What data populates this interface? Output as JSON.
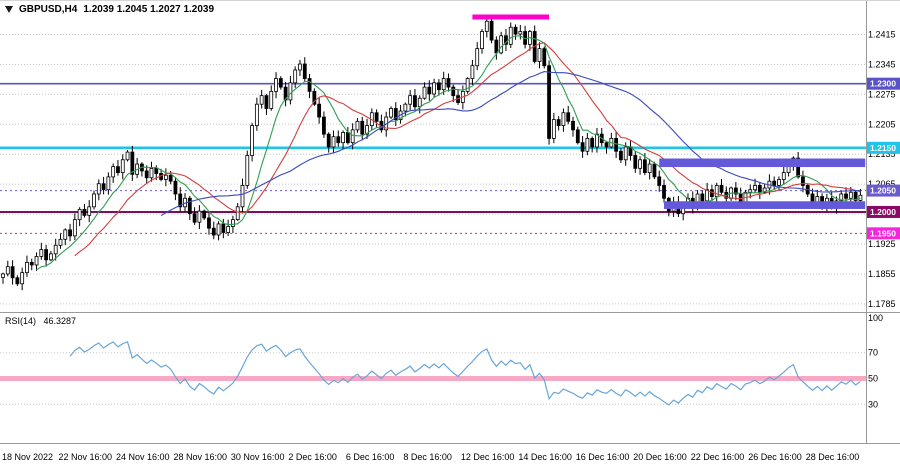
{
  "header": {
    "symbol_timeframe": "GBPUSD,H4",
    "open": "1.2039",
    "high": "1.2045",
    "low": "1.2027",
    "close": "1.2039",
    "ohlc": "1.2039 1.2045 1.2027 1.2039"
  },
  "indicator": {
    "label": "RSI(14)",
    "value": "46.3287"
  },
  "colors": {
    "background": "#ffffff",
    "grid": "#c6c6c6",
    "bull_candle": "#ffffff",
    "bear_candle": "#000000",
    "candle_outline": "#000000",
    "ma_fast": "#2f9e4f",
    "ma_medium": "#d23f3f",
    "ma_slow": "#3a49c0",
    "rsi_line": "#6aa5d8",
    "rsi_band": "#f7a8c4",
    "separator": "#9a9a9a",
    "axis_text": "#000000"
  },
  "chart_data": [
    {
      "type": "candlestick",
      "title": "GBPUSD,H4",
      "ylabel": "price",
      "y_range": [
        1.1773,
        1.247
      ],
      "x_label_step": 12,
      "x_labels": [
        "18 Nov 2022",
        "22 Nov 16:00",
        "24 Nov 16:00",
        "28 Nov 16:00",
        "30 Nov 16:00",
        "2 Dec 16:00",
        "6 Dec 16:00",
        "8 Dec 16:00",
        "12 Dec 16:00",
        "14 Dec 16:00",
        "16 Dec 16:00",
        "20 Dec 16:00",
        "22 Dec 16:00",
        "26 Dec 16:00",
        "28 Dec 16:00"
      ],
      "price_tick_labels": [
        "1.2415",
        "1.2345",
        "1.2275",
        "1.2205",
        "1.2135",
        "1.2065",
        "1.1995",
        "1.1925",
        "1.1855",
        "1.1785"
      ],
      "closes": [
        1.1855,
        1.1872,
        1.1846,
        1.1832,
        1.1858,
        1.1882,
        1.1876,
        1.1896,
        1.1912,
        1.1888,
        1.1902,
        1.1922,
        1.1936,
        1.1958,
        1.1944,
        1.1982,
        1.2006,
        1.1992,
        1.2012,
        1.2042,
        1.2066,
        1.2052,
        1.2082,
        1.2106,
        1.2092,
        1.2122,
        1.214,
        1.2088,
        1.2112,
        1.2096,
        1.208,
        1.2102,
        1.209,
        1.2076,
        1.2086,
        1.2072,
        1.2042,
        1.2012,
        1.2032,
        1.1996,
        1.1976,
        1.2002,
        1.1986,
        1.1962,
        1.1946,
        1.1972,
        1.1952,
        1.1966,
        1.1982,
        1.2012,
        1.2062,
        1.2132,
        1.2202,
        1.2252,
        1.2272,
        1.2242,
        1.2282,
        1.2312,
        1.2292,
        1.2262,
        1.2302,
        1.2332,
        1.2346,
        1.2312,
        1.2282,
        1.2252,
        1.2222,
        1.2182,
        1.2152,
        1.2176,
        1.2162,
        1.2186,
        1.2162,
        1.2192,
        1.2212,
        1.2182,
        1.2202,
        1.2232,
        1.2212,
        1.2192,
        1.2222,
        1.2242,
        1.2216,
        1.2236,
        1.2252,
        1.2272,
        1.2246,
        1.2266,
        1.2292,
        1.2276,
        1.2302,
        1.2286,
        1.2312,
        1.2292,
        1.2272,
        1.2256,
        1.2282,
        1.2312,
        1.2342,
        1.2382,
        1.2422,
        1.2446,
        1.2402,
        1.2372,
        1.2412,
        1.2392,
        1.2432,
        1.2416,
        1.2422,
        1.2392,
        1.2422,
        1.2352,
        1.2382,
        1.2342,
        1.2172,
        1.2216,
        1.2202,
        1.2232,
        1.2212,
        1.2192,
        1.2162,
        1.2142,
        1.2172,
        1.2152,
        1.2182,
        1.2162,
        1.2152,
        1.2172,
        1.2142,
        1.2122,
        1.2152,
        1.2132,
        1.2102,
        1.2122,
        1.2092,
        1.2112,
        1.2082,
        1.2062,
        1.2032,
        1.2002,
        1.2022,
        1.1996,
        1.2016,
        1.2032,
        1.2012,
        1.2042,
        1.2026,
        1.2052,
        1.2036,
        1.2062,
        1.2046,
        1.2032,
        1.2056,
        1.2042,
        1.2022,
        1.2046,
        1.2052,
        1.2062,
        1.2046,
        1.2056,
        1.2072,
        1.2062,
        1.2076,
        1.2092,
        1.2112,
        1.2126,
        1.2082,
        1.2062,
        1.2042,
        1.2022,
        1.2036,
        1.2016,
        1.2032,
        1.2012,
        1.2026,
        1.2042,
        1.2032,
        1.2046,
        1.2027,
        1.2039
      ],
      "moving_averages": [
        {
          "name": "MA fast",
          "period": 8,
          "color": "#2f9e4f"
        },
        {
          "name": "MA medium",
          "period": 16,
          "color": "#d23f3f"
        },
        {
          "name": "MA slow",
          "period": 34,
          "color": "#3a49c0"
        }
      ],
      "levels": [
        {
          "price": 1.23,
          "label": "1.2300",
          "line_color": "#5a52c8",
          "badge_color": "#5a52c8",
          "style": "solid",
          "width": 1.6
        },
        {
          "price": 1.215,
          "label": "1.2150",
          "line_color": "#1fc4e8",
          "badge_color": "#1fc4e8",
          "style": "solid",
          "width": 2.6
        },
        {
          "price": 1.205,
          "label": "1.2050",
          "line_color": "#6a5ad0",
          "badge_color": "#6a5ad0",
          "style": "dot",
          "width": 1
        },
        {
          "price": 1.2,
          "label": "1.2000",
          "line_color": "#7c0e5e",
          "badge_color": "#8b0a63",
          "style": "solid",
          "width": 2
        },
        {
          "price": 1.195,
          "label": "1.1950",
          "line_color": "#d43a4e",
          "badge_color": "#f326dd",
          "style": "dot",
          "width": 1
        }
      ],
      "zones": [
        {
          "name": "resistance-zone",
          "price_top": 1.2125,
          "price_bottom": 1.2105,
          "start_index": 137,
          "end_index": 180,
          "color": "#6459d8"
        },
        {
          "name": "support-zone",
          "price_top": 1.2025,
          "price_bottom": 1.2007,
          "start_index": 138,
          "end_index": 180,
          "color": "#6459d8"
        }
      ],
      "segments": [
        {
          "name": "top-resistance-segment",
          "price": 1.2456,
          "start_index": 98,
          "end_index": 114,
          "color": "#ff00c8",
          "width": 5
        }
      ]
    },
    {
      "type": "line",
      "name": "RSI(14)",
      "period": 14,
      "current": 46.3287,
      "range": [
        0,
        100
      ],
      "tick_values": [
        100,
        70,
        50,
        30
      ],
      "tick_labels": [
        "100",
        "70",
        "50",
        "30"
      ],
      "dotted_levels": [
        70,
        50,
        30
      ],
      "band": {
        "level": 50,
        "color": "#f7a8c4",
        "width": 5
      },
      "line_color": "#6aa5d8"
    }
  ]
}
